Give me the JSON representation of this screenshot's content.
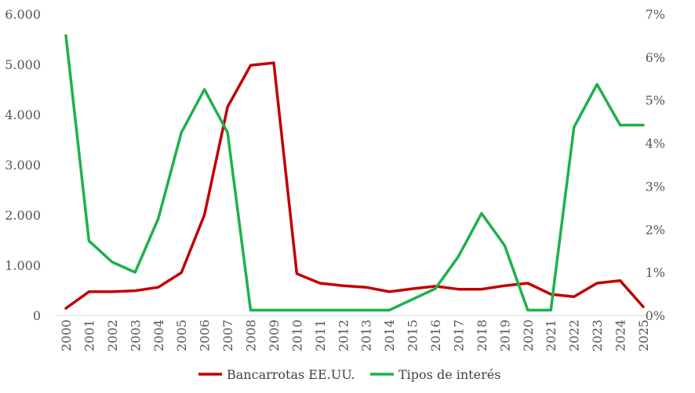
{
  "chart_data": {
    "type": "line",
    "title": "",
    "xlabel": "",
    "ylabel": "",
    "categories": [
      "2000",
      "2001",
      "2002",
      "2003",
      "2004",
      "2005",
      "2006",
      "2007",
      "2008",
      "2009",
      "2010",
      "2011",
      "2012",
      "2013",
      "2014",
      "2015",
      "2016",
      "2017",
      "2018",
      "2019",
      "2020",
      "2021",
      "2022",
      "2023",
      "2024",
      "2025"
    ],
    "y_left": {
      "ylim": [
        0,
        6000
      ],
      "ticks": [
        0,
        1000,
        2000,
        3000,
        4000,
        5000,
        6000
      ],
      "tick_labels": [
        "0",
        "1.000",
        "2.000",
        "3.000",
        "4.000",
        "5.000",
        "6.000"
      ]
    },
    "y_right": {
      "ylim": [
        0,
        7
      ],
      "ticks": [
        0,
        1,
        2,
        3,
        4,
        5,
        6,
        7
      ],
      "tick_labels": [
        "0%",
        "1%",
        "2%",
        "3%",
        "4%",
        "5%",
        "6%",
        "7%"
      ]
    },
    "series": [
      {
        "name": "Bancarrotas EE.UU.",
        "axis": "left",
        "color": "#c00000",
        "values": [
          140,
          470,
          470,
          490,
          560,
          850,
          2000,
          4150,
          4980,
          5030,
          830,
          640,
          590,
          560,
          470,
          530,
          580,
          520,
          520,
          590,
          640,
          420,
          370,
          640,
          690,
          170
        ]
      },
      {
        "name": "Tipos de interés",
        "axis": "right",
        "color": "#1fb04c",
        "values": [
          6.5,
          1.73,
          1.24,
          1.0,
          2.25,
          4.25,
          5.25,
          4.25,
          0.12,
          0.12,
          0.12,
          0.12,
          0.12,
          0.12,
          0.12,
          0.37,
          0.62,
          1.37,
          2.37,
          1.62,
          0.12,
          0.12,
          4.37,
          5.37,
          4.42,
          4.42
        ]
      }
    ],
    "grid": true,
    "legend_position": "bottom"
  }
}
